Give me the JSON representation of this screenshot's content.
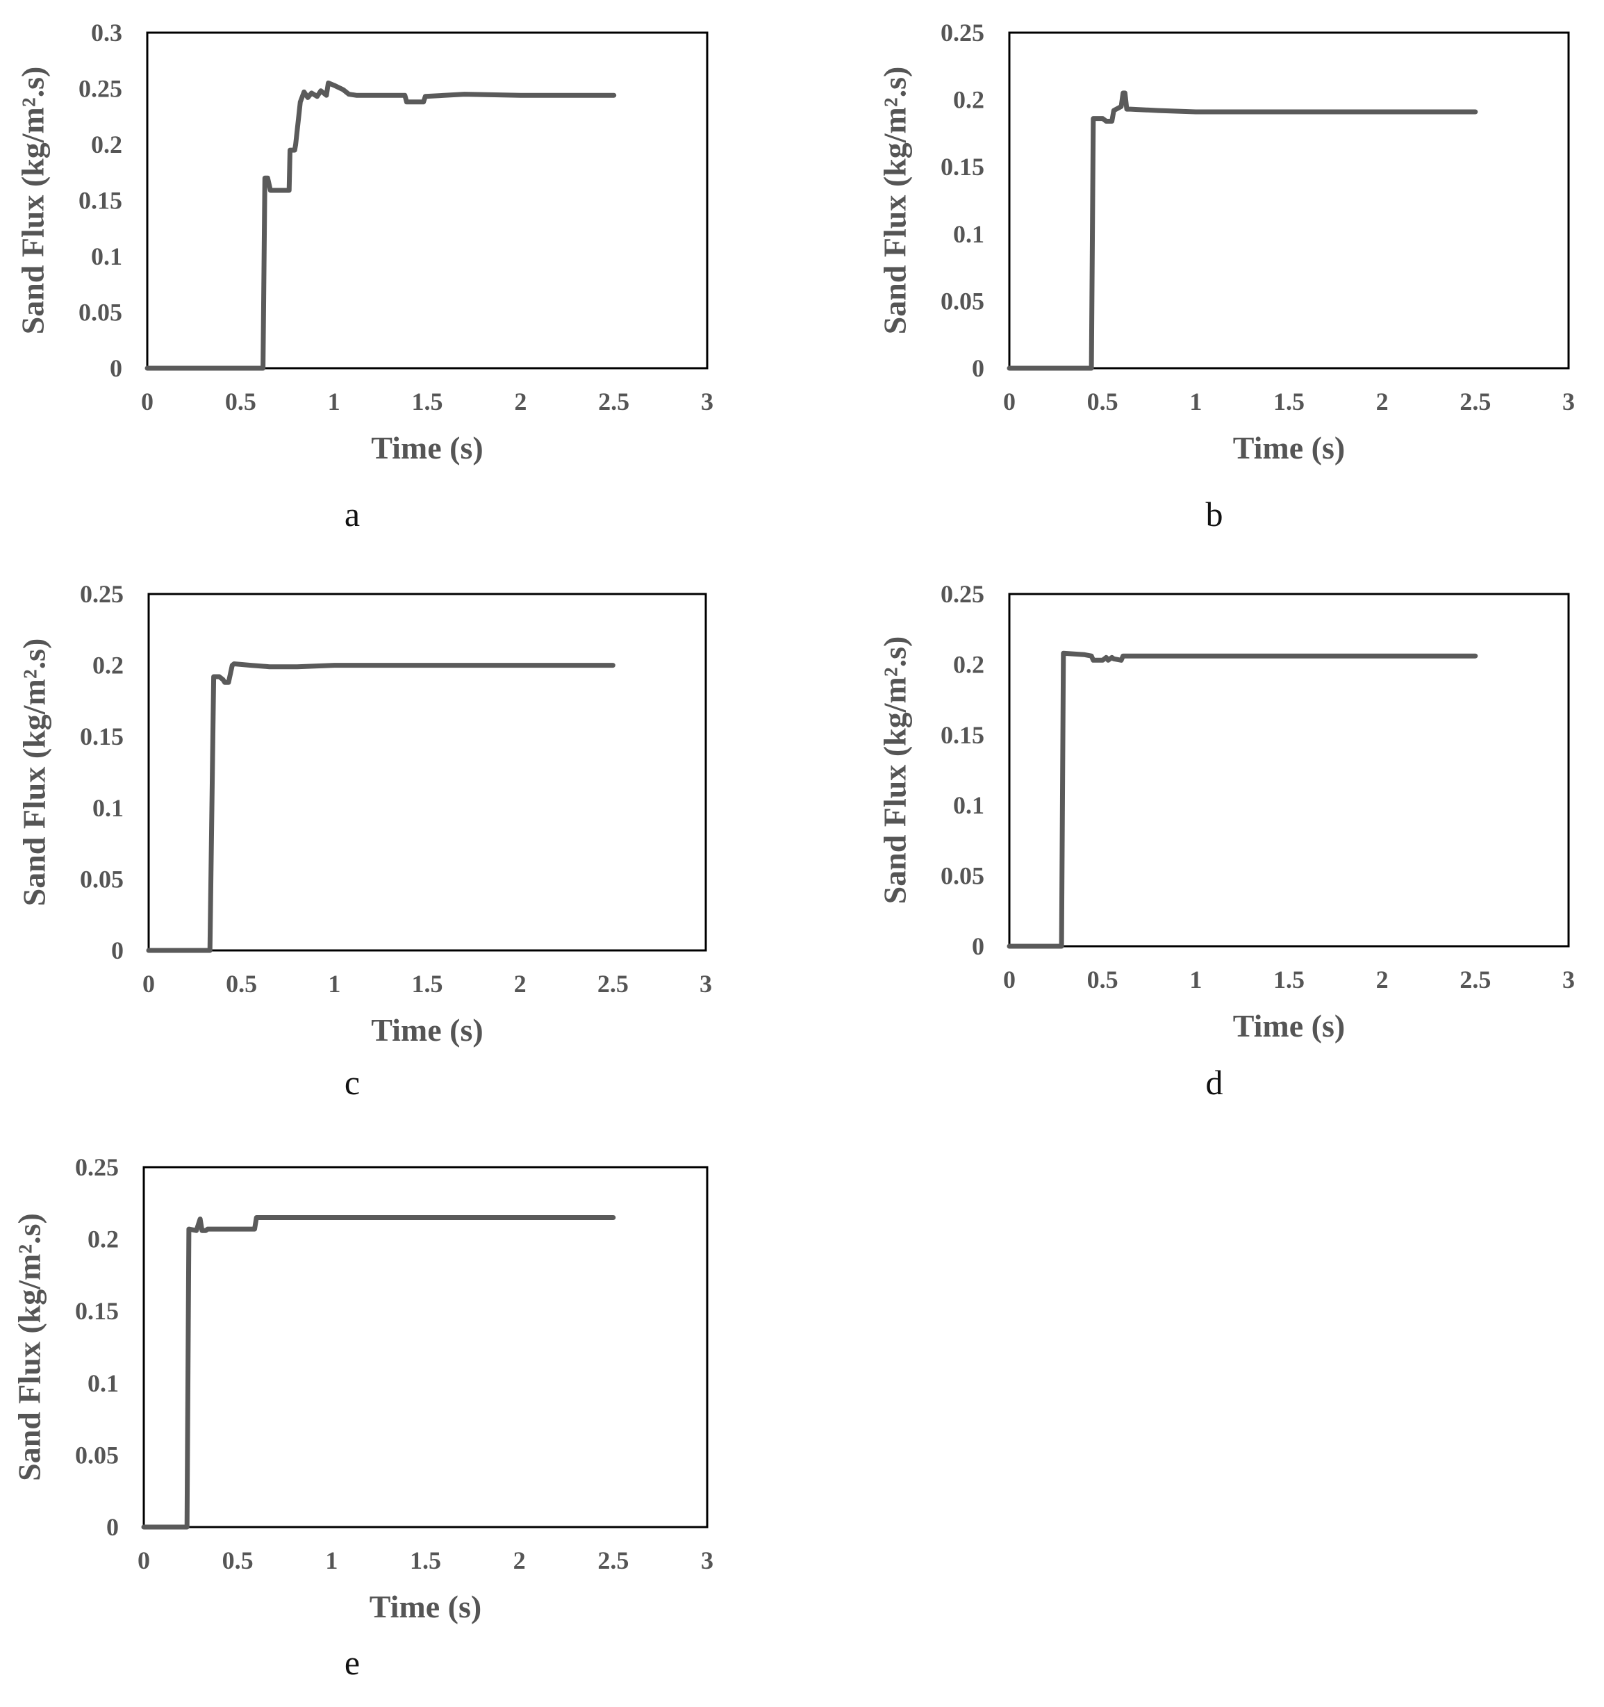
{
  "figure": {
    "line_color": "#5a5a5a",
    "frame_color": "#000000",
    "text_color": "#555555"
  },
  "chart_data": [
    {
      "type": "line",
      "panel_label": "a",
      "xlabel": "Time (s)",
      "ylabel": "Sand Flux (kg/m².s)",
      "xlim": [
        0,
        3
      ],
      "ylim": [
        0,
        0.3
      ],
      "xticks": [
        "0",
        "0.5",
        "1",
        "1.5",
        "2",
        "2.5",
        "3"
      ],
      "yticks": [
        "0",
        "0.05",
        "0.1",
        "0.15",
        "0.2",
        "0.25",
        "0.3"
      ],
      "grid": false,
      "series": [
        {
          "x": [
            0,
            0.62,
            0.63,
            0.645,
            0.66,
            0.76,
            0.765,
            0.79,
            0.795,
            0.82,
            0.84,
            0.86,
            0.88,
            0.91,
            0.93,
            0.96,
            0.97,
            1.0,
            1.05,
            1.08,
            1.12,
            1.38,
            1.39,
            1.48,
            1.49,
            1.7,
            2.0,
            2.5
          ],
          "y": [
            0,
            0,
            0.17,
            0.17,
            0.159,
            0.159,
            0.195,
            0.195,
            0.2,
            0.238,
            0.247,
            0.242,
            0.246,
            0.243,
            0.248,
            0.244,
            0.255,
            0.253,
            0.249,
            0.245,
            0.244,
            0.244,
            0.238,
            0.238,
            0.243,
            0.245,
            0.244,
            0.244
          ]
        }
      ]
    },
    {
      "type": "line",
      "panel_label": "b",
      "xlabel": "Time (s)",
      "ylabel": "Sand Flux (kg/m².s)",
      "xlim": [
        0,
        3
      ],
      "ylim": [
        0,
        0.25
      ],
      "xticks": [
        "0",
        "0.5",
        "1",
        "1.5",
        "2",
        "2.5",
        "3"
      ],
      "yticks": [
        "0",
        "0.05",
        "0.1",
        "0.15",
        "0.2",
        "0.25"
      ],
      "grid": false,
      "series": [
        {
          "x": [
            0,
            0.44,
            0.45,
            0.5,
            0.52,
            0.55,
            0.56,
            0.6,
            0.61,
            0.62,
            0.63,
            0.65,
            0.8,
            1.0,
            2.5
          ],
          "y": [
            0,
            0,
            0.186,
            0.186,
            0.184,
            0.184,
            0.192,
            0.195,
            0.205,
            0.205,
            0.193,
            0.193,
            0.192,
            0.191,
            0.191
          ]
        }
      ]
    },
    {
      "type": "line",
      "panel_label": "c",
      "xlabel": "Time (s)",
      "ylabel": "Sand Flux (kg/m².s)",
      "xlim": [
        0,
        3
      ],
      "ylim": [
        0,
        0.25
      ],
      "xticks": [
        "0",
        "0.5",
        "1",
        "1.5",
        "2",
        "2.5",
        "3"
      ],
      "yticks": [
        "0",
        "0.05",
        "0.1",
        "0.15",
        "0.2",
        "0.25"
      ],
      "grid": false,
      "series": [
        {
          "x": [
            0,
            0.33,
            0.35,
            0.38,
            0.4,
            0.41,
            0.43,
            0.45,
            0.46,
            0.55,
            0.65,
            0.8,
            1.0,
            2.5
          ],
          "y": [
            0,
            0,
            0.192,
            0.192,
            0.19,
            0.188,
            0.188,
            0.2,
            0.201,
            0.2,
            0.199,
            0.199,
            0.2,
            0.2
          ]
        }
      ]
    },
    {
      "type": "line",
      "panel_label": "d",
      "xlabel": "Time (s)",
      "ylabel": "Sand Flux (kg/m².s)",
      "xlim": [
        0,
        3
      ],
      "ylim": [
        0,
        0.25
      ],
      "xticks": [
        "0",
        "0.5",
        "1",
        "1.5",
        "2",
        "2.5",
        "3"
      ],
      "yticks": [
        "0",
        "0.05",
        "0.1",
        "0.15",
        "0.2",
        "0.25"
      ],
      "grid": false,
      "series": [
        {
          "x": [
            0,
            0.28,
            0.29,
            0.4,
            0.44,
            0.45,
            0.5,
            0.52,
            0.53,
            0.55,
            0.56,
            0.6,
            0.61,
            1.0,
            2.5
          ],
          "y": [
            0,
            0,
            0.208,
            0.207,
            0.206,
            0.203,
            0.203,
            0.205,
            0.203,
            0.205,
            0.204,
            0.203,
            0.206,
            0.206,
            0.206
          ]
        }
      ]
    },
    {
      "type": "line",
      "panel_label": "e",
      "xlabel": "Time (s)",
      "ylabel": "Sand Flux (kg/m².s)",
      "xlim": [
        0,
        3
      ],
      "ylim": [
        0,
        0.25
      ],
      "xticks": [
        "0",
        "0.5",
        "1",
        "1.5",
        "2",
        "2.5",
        "3"
      ],
      "yticks": [
        "0",
        "0.05",
        "0.1",
        "0.15",
        "0.2",
        "0.25"
      ],
      "grid": false,
      "series": [
        {
          "x": [
            0,
            0.23,
            0.24,
            0.28,
            0.3,
            0.31,
            0.33,
            0.34,
            0.59,
            0.6,
            1.0,
            2.5
          ],
          "y": [
            0,
            0,
            0.207,
            0.206,
            0.214,
            0.206,
            0.206,
            0.207,
            0.207,
            0.215,
            0.215,
            0.215
          ]
        }
      ]
    }
  ]
}
